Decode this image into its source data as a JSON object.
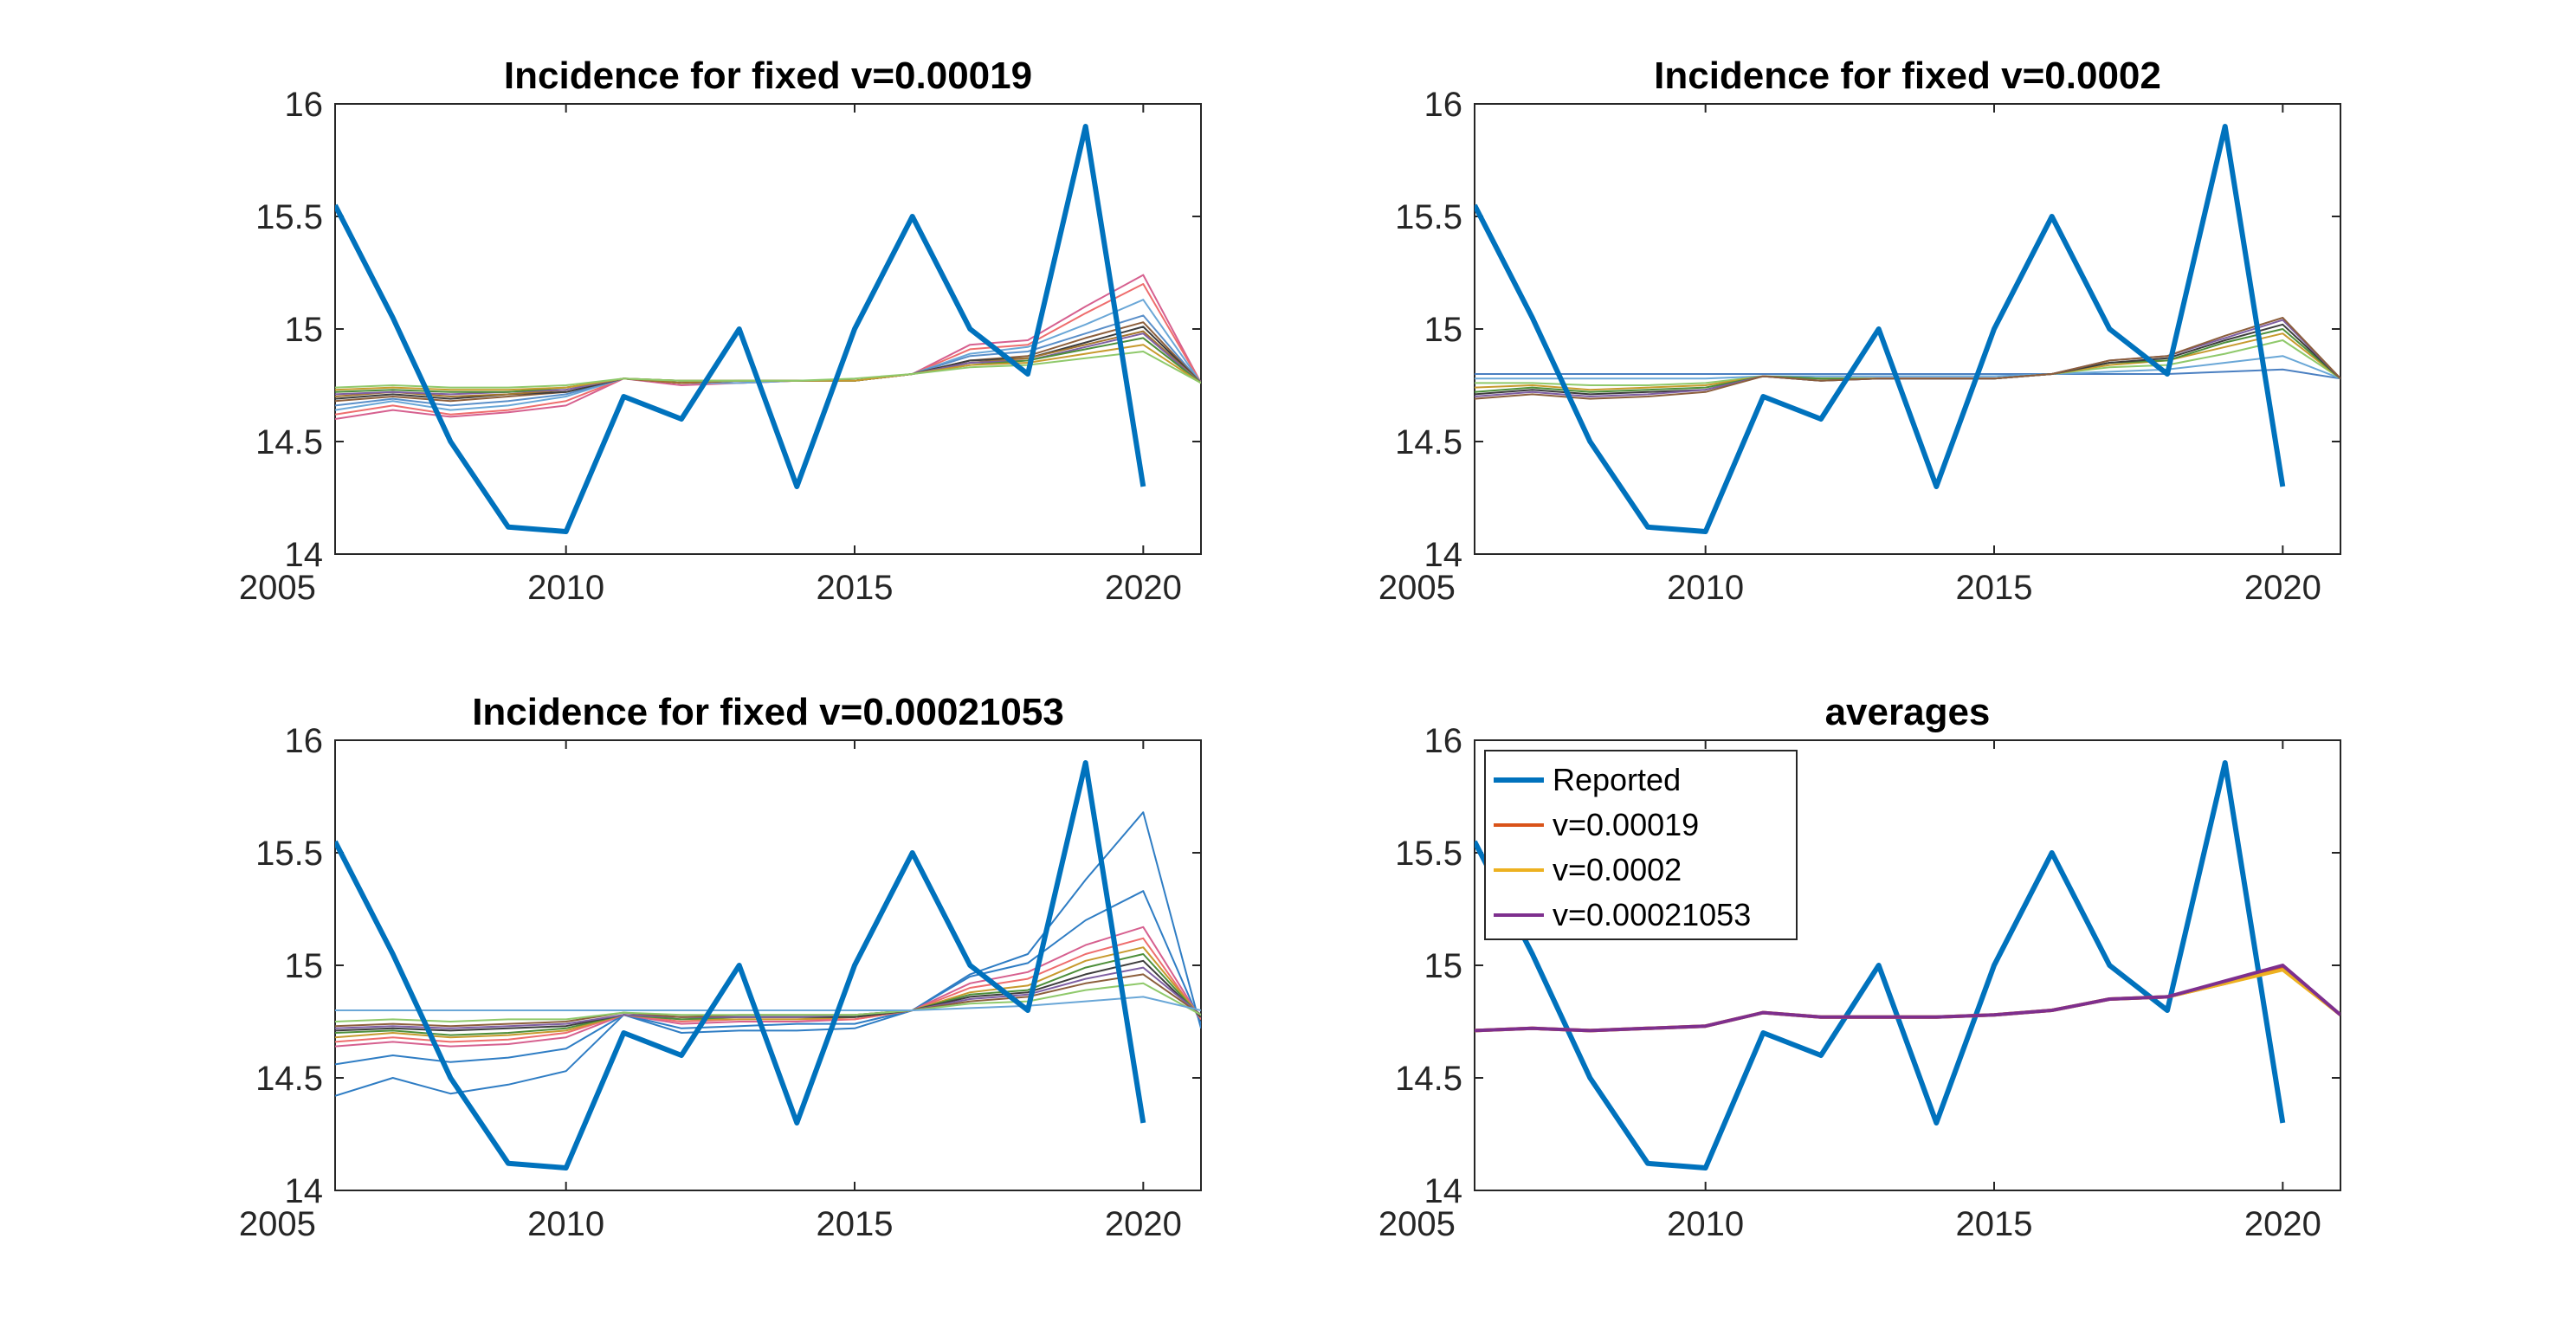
{
  "chart_data": [
    {
      "type": "line",
      "title": "Incidence for fixed v=0.00019",
      "xlim": [
        2006,
        2021
      ],
      "ylim": [
        14,
        16
      ],
      "xticks": [
        2005,
        2010,
        2015,
        2020
      ],
      "yticks": [
        14,
        14.5,
        15,
        15.5,
        16
      ],
      "grid": false,
      "reported": {
        "x": [
          2006,
          2007,
          2008,
          2009,
          2010,
          2011,
          2012,
          2013,
          2014,
          2015,
          2016,
          2017,
          2018,
          2019,
          2020
        ],
        "values": [
          15.55,
          15.05,
          14.5,
          14.12,
          14.1,
          14.7,
          14.6,
          15.0,
          14.3,
          15.0,
          15.5,
          15.0,
          14.8,
          15.9,
          14.3
        ]
      },
      "simulations": {
        "x": [
          2006,
          2007,
          2008,
          2009,
          2010,
          2011,
          2012,
          2013,
          2014,
          2015,
          2016,
          2017,
          2018,
          2019,
          2020,
          2021
        ],
        "series": [
          {
            "color": "#d6608f",
            "values": [
              14.6,
              14.64,
              14.61,
              14.63,
              14.66,
              14.78,
              14.75,
              14.76,
              14.77,
              14.77,
              14.8,
              14.93,
              14.95,
              15.1,
              15.24,
              14.76
            ]
          },
          {
            "color": "#ee6d6d",
            "values": [
              14.62,
              14.66,
              14.62,
              14.64,
              14.68,
              14.78,
              14.76,
              14.76,
              14.77,
              14.77,
              14.8,
              14.91,
              14.93,
              15.07,
              15.2,
              14.76
            ]
          },
          {
            "color": "#6aa7d7",
            "values": [
              14.64,
              14.68,
              14.64,
              14.66,
              14.7,
              14.78,
              14.76,
              14.76,
              14.77,
              14.77,
              14.8,
              14.89,
              14.92,
              15.02,
              15.13,
              14.76
            ]
          },
          {
            "color": "#5a8fc9",
            "values": [
              14.66,
              14.69,
              14.66,
              14.68,
              14.71,
              14.78,
              14.76,
              14.77,
              14.77,
              14.77,
              14.8,
              14.88,
              14.9,
              14.98,
              15.06,
              14.76
            ]
          },
          {
            "color": "#8c5f3c",
            "values": [
              14.68,
              14.7,
              14.68,
              14.7,
              14.72,
              14.78,
              14.76,
              14.77,
              14.77,
              14.77,
              14.8,
              14.86,
              14.88,
              14.96,
              15.03,
              14.76
            ]
          },
          {
            "color": "#3d3d3d",
            "values": [
              14.69,
              14.71,
              14.69,
              14.71,
              14.72,
              14.78,
              14.76,
              14.77,
              14.77,
              14.77,
              14.8,
              14.86,
              14.87,
              14.94,
              15.01,
              14.76
            ]
          },
          {
            "color": "#a3752f",
            "values": [
              14.7,
              14.72,
              14.7,
              14.71,
              14.73,
              14.78,
              14.76,
              14.77,
              14.77,
              14.77,
              14.8,
              14.85,
              14.87,
              14.93,
              14.99,
              14.76
            ]
          },
          {
            "color": "#7e5fa3",
            "values": [
              14.71,
              14.72,
              14.71,
              14.72,
              14.73,
              14.78,
              14.77,
              14.77,
              14.77,
              14.77,
              14.8,
              14.85,
              14.86,
              14.92,
              14.98,
              14.76
            ]
          },
          {
            "color": "#4d8f3a",
            "values": [
              14.72,
              14.73,
              14.72,
              14.72,
              14.74,
              14.78,
              14.77,
              14.77,
              14.77,
              14.77,
              14.8,
              14.84,
              14.86,
              14.91,
              14.96,
              14.76
            ]
          },
          {
            "color": "#c79a2e",
            "values": [
              14.73,
              14.74,
              14.73,
              14.73,
              14.74,
              14.78,
              14.77,
              14.77,
              14.77,
              14.77,
              14.8,
              14.84,
              14.85,
              14.89,
              14.93,
              14.76
            ]
          },
          {
            "color": "#8fc96b",
            "values": [
              14.74,
              14.75,
              14.74,
              14.74,
              14.75,
              14.78,
              14.77,
              14.77,
              14.77,
              14.78,
              14.8,
              14.83,
              14.84,
              14.87,
              14.9,
              14.76
            ]
          }
        ]
      }
    },
    {
      "type": "line",
      "title": "Incidence for fixed v=0.0002",
      "xlim": [
        2006,
        2021
      ],
      "ylim": [
        14,
        16
      ],
      "xticks": [
        2005,
        2010,
        2015,
        2020
      ],
      "yticks": [
        14,
        14.5,
        15,
        15.5,
        16
      ],
      "grid": false,
      "reported": {
        "x": [
          2006,
          2007,
          2008,
          2009,
          2010,
          2011,
          2012,
          2013,
          2014,
          2015,
          2016,
          2017,
          2018,
          2019,
          2020
        ],
        "values": [
          15.55,
          15.05,
          14.5,
          14.12,
          14.1,
          14.7,
          14.6,
          15.0,
          14.3,
          15.0,
          15.5,
          15.0,
          14.8,
          15.9,
          14.3
        ]
      },
      "simulations": {
        "x": [
          2006,
          2007,
          2008,
          2009,
          2010,
          2011,
          2012,
          2013,
          2014,
          2015,
          2016,
          2017,
          2018,
          2019,
          2020,
          2021
        ],
        "series": [
          {
            "color": "#4a7fc1",
            "values": [
              14.8,
              14.8,
              14.8,
              14.8,
              14.8,
              14.8,
              14.8,
              14.8,
              14.8,
              14.8,
              14.8,
              14.8,
              14.8,
              14.81,
              14.82,
              14.78
            ]
          },
          {
            "color": "#6aa7d7",
            "values": [
              14.78,
              14.78,
              14.78,
              14.78,
              14.78,
              14.79,
              14.79,
              14.79,
              14.79,
              14.79,
              14.8,
              14.81,
              14.82,
              14.85,
              14.88,
              14.78
            ]
          },
          {
            "color": "#8fc96b",
            "values": [
              14.76,
              14.76,
              14.75,
              14.75,
              14.76,
              14.79,
              14.78,
              14.78,
              14.78,
              14.78,
              14.8,
              14.83,
              14.84,
              14.89,
              14.95,
              14.78
            ]
          },
          {
            "color": "#c79a2e",
            "values": [
              14.74,
              14.75,
              14.73,
              14.74,
              14.75,
              14.79,
              14.78,
              14.78,
              14.78,
              14.78,
              14.8,
              14.84,
              14.86,
              14.92,
              14.98,
              14.78
            ]
          },
          {
            "color": "#4d8f3a",
            "values": [
              14.72,
              14.74,
              14.72,
              14.73,
              14.74,
              14.79,
              14.78,
              14.78,
              14.78,
              14.78,
              14.8,
              14.85,
              14.86,
              14.94,
              15.0,
              14.78
            ]
          },
          {
            "color": "#3d3d3d",
            "values": [
              14.71,
              14.73,
              14.71,
              14.72,
              14.73,
              14.79,
              14.77,
              14.78,
              14.78,
              14.78,
              14.8,
              14.85,
              14.87,
              14.95,
              15.02,
              14.78
            ]
          },
          {
            "color": "#7e5fa3",
            "values": [
              14.7,
              14.72,
              14.7,
              14.71,
              14.73,
              14.79,
              14.77,
              14.78,
              14.78,
              14.78,
              14.8,
              14.86,
              14.88,
              14.96,
              15.04,
              14.78
            ]
          },
          {
            "color": "#8c5f3c",
            "values": [
              14.69,
              14.71,
              14.69,
              14.7,
              14.72,
              14.79,
              14.77,
              14.78,
              14.78,
              14.78,
              14.8,
              14.86,
              14.88,
              14.97,
              15.05,
              14.78
            ]
          }
        ]
      }
    },
    {
      "type": "line",
      "title": "Incidence for fixed v=0.00021053",
      "xlim": [
        2006,
        2021
      ],
      "ylim": [
        14,
        16
      ],
      "xticks": [
        2005,
        2010,
        2015,
        2020
      ],
      "yticks": [
        14,
        14.5,
        15,
        15.5,
        16
      ],
      "grid": false,
      "reported": {
        "x": [
          2006,
          2007,
          2008,
          2009,
          2010,
          2011,
          2012,
          2013,
          2014,
          2015,
          2016,
          2017,
          2018,
          2019,
          2020
        ],
        "values": [
          15.55,
          15.05,
          14.5,
          14.12,
          14.1,
          14.7,
          14.6,
          15.0,
          14.3,
          15.0,
          15.5,
          15.0,
          14.8,
          15.9,
          14.3
        ]
      },
      "simulations": {
        "x": [
          2006,
          2007,
          2008,
          2009,
          2010,
          2011,
          2012,
          2013,
          2014,
          2015,
          2016,
          2017,
          2018,
          2019,
          2020,
          2021
        ],
        "series": [
          {
            "color": "#2f7dc4",
            "values": [
              14.42,
              14.5,
              14.43,
              14.47,
              14.53,
              14.78,
              14.7,
              14.71,
              14.71,
              14.72,
              14.8,
              14.96,
              15.05,
              15.38,
              15.68,
              14.72
            ]
          },
          {
            "color": "#2f7dc4",
            "values": [
              14.56,
              14.6,
              14.57,
              14.59,
              14.63,
              14.78,
              14.72,
              14.73,
              14.74,
              14.74,
              14.8,
              14.95,
              15.01,
              15.2,
              15.33,
              14.74
            ]
          },
          {
            "color": "#d6608f",
            "values": [
              14.64,
              14.66,
              14.64,
              14.65,
              14.68,
              14.78,
              14.74,
              14.75,
              14.75,
              14.76,
              14.8,
              14.92,
              14.97,
              15.09,
              15.17,
              14.76
            ]
          },
          {
            "color": "#ee6d6d",
            "values": [
              14.66,
              14.68,
              14.66,
              14.67,
              14.7,
              14.78,
              14.75,
              14.76,
              14.76,
              14.76,
              14.8,
              14.9,
              14.94,
              15.05,
              15.12,
              14.76
            ]
          },
          {
            "color": "#c79a2e",
            "values": [
              14.68,
              14.7,
              14.68,
              14.69,
              14.71,
              14.78,
              14.76,
              14.76,
              14.76,
              14.77,
              14.8,
              14.88,
              14.91,
              15.02,
              15.08,
              14.77
            ]
          },
          {
            "color": "#4d8f3a",
            "values": [
              14.7,
              14.71,
              14.69,
              14.7,
              14.72,
              14.78,
              14.76,
              14.77,
              14.77,
              14.77,
              14.8,
              14.87,
              14.89,
              14.99,
              15.05,
              14.77
            ]
          },
          {
            "color": "#3d3d3d",
            "values": [
              14.71,
              14.72,
              14.71,
              14.72,
              14.73,
              14.78,
              14.77,
              14.77,
              14.77,
              14.77,
              14.8,
              14.86,
              14.88,
              14.96,
              15.02,
              14.77
            ]
          },
          {
            "color": "#7e5fa3",
            "values": [
              14.72,
              14.73,
              14.72,
              14.73,
              14.74,
              14.78,
              14.77,
              14.77,
              14.77,
              14.78,
              14.8,
              14.85,
              14.87,
              14.94,
              14.99,
              14.78
            ]
          },
          {
            "color": "#8c5f3c",
            "values": [
              14.73,
              14.74,
              14.73,
              14.74,
              14.75,
              14.79,
              14.77,
              14.78,
              14.78,
              14.78,
              14.8,
              14.84,
              14.86,
              14.92,
              14.96,
              14.78
            ]
          },
          {
            "color": "#8fc96b",
            "values": [
              14.75,
              14.76,
              14.75,
              14.76,
              14.76,
              14.79,
              14.78,
              14.78,
              14.78,
              14.78,
              14.8,
              14.83,
              14.84,
              14.89,
              14.92,
              14.78
            ]
          },
          {
            "color": "#6aa7d7",
            "values": [
              14.8,
              14.8,
              14.8,
              14.8,
              14.8,
              14.8,
              14.8,
              14.8,
              14.8,
              14.8,
              14.8,
              14.81,
              14.82,
              14.84,
              14.86,
              14.8
            ]
          }
        ]
      }
    },
    {
      "type": "line",
      "title": "averages",
      "xlim": [
        2006,
        2021
      ],
      "ylim": [
        14,
        16
      ],
      "xticks": [
        2005,
        2010,
        2015,
        2020
      ],
      "yticks": [
        14,
        14.5,
        15,
        15.5,
        16
      ],
      "grid": false,
      "legend_position": "top-left",
      "reported": {
        "name": "Reported",
        "x": [
          2006,
          2007,
          2008,
          2009,
          2010,
          2011,
          2012,
          2013,
          2014,
          2015,
          2016,
          2017,
          2018,
          2019,
          2020
        ],
        "values": [
          15.55,
          15.05,
          14.5,
          14.12,
          14.1,
          14.7,
          14.6,
          15.0,
          14.3,
          15.0,
          15.5,
          15.0,
          14.8,
          15.9,
          14.3
        ]
      },
      "averages": {
        "x": [
          2006,
          2007,
          2008,
          2009,
          2010,
          2011,
          2012,
          2013,
          2014,
          2015,
          2016,
          2017,
          2018,
          2019,
          2020,
          2021
        ],
        "series": [
          {
            "name": "v=0.00019",
            "color": "#d95319",
            "values": [
              14.71,
              14.72,
              14.71,
              14.72,
              14.73,
              14.79,
              14.77,
              14.77,
              14.77,
              14.78,
              14.8,
              14.85,
              14.86,
              14.92,
              14.99,
              14.78
            ]
          },
          {
            "name": "v=0.0002",
            "color": "#edb120",
            "values": [
              14.71,
              14.72,
              14.71,
              14.72,
              14.73,
              14.79,
              14.77,
              14.77,
              14.77,
              14.78,
              14.8,
              14.85,
              14.86,
              14.92,
              14.98,
              14.78
            ]
          },
          {
            "name": "v=0.00021053",
            "color": "#7e2f8e",
            "values": [
              14.71,
              14.72,
              14.71,
              14.72,
              14.73,
              14.79,
              14.77,
              14.77,
              14.77,
              14.78,
              14.8,
              14.85,
              14.86,
              14.93,
              15.0,
              14.78
            ]
          }
        ]
      }
    }
  ],
  "colors": {
    "reported": "#0072bd",
    "axis": "#262626"
  }
}
